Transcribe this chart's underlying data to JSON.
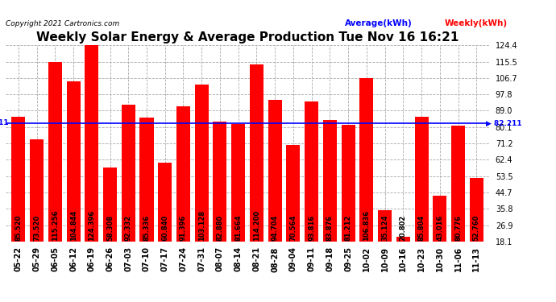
{
  "title": "Weekly Solar Energy & Average Production Tue Nov 16 16:21",
  "copyright": "Copyright 2021 Cartronics.com",
  "average_label": "Average(kWh)",
  "weekly_label": "Weekly(kWh)",
  "average_value": 82.211,
  "average_line_color": "#0000ff",
  "bar_color": "#ff0000",
  "categories": [
    "05-22",
    "05-29",
    "06-05",
    "06-12",
    "06-19",
    "06-26",
    "07-03",
    "07-10",
    "07-17",
    "07-24",
    "07-31",
    "08-07",
    "08-14",
    "08-21",
    "08-28",
    "09-04",
    "09-11",
    "09-18",
    "09-25",
    "10-02",
    "10-09",
    "10-16",
    "10-23",
    "10-30",
    "11-06",
    "11-13"
  ],
  "values": [
    85.52,
    73.52,
    115.256,
    104.844,
    124.396,
    58.308,
    92.332,
    85.336,
    60.84,
    91.396,
    103.128,
    82.88,
    81.664,
    114.2,
    94.704,
    70.564,
    93.816,
    83.876,
    81.212,
    106.836,
    35.124,
    20.802,
    85.804,
    43.016,
    80.776,
    52.76
  ],
  "ylim_min": 18.1,
  "ylim_max": 124.4,
  "yticks": [
    18.1,
    26.9,
    35.8,
    44.7,
    53.5,
    62.4,
    71.2,
    80.1,
    89.0,
    97.8,
    106.7,
    115.5,
    124.4
  ],
  "background_color": "#ffffff",
  "grid_color": "#aaaaaa",
  "title_fontsize": 11,
  "tick_fontsize": 7,
  "bar_label_fontsize": 6,
  "label_color": "#000000"
}
